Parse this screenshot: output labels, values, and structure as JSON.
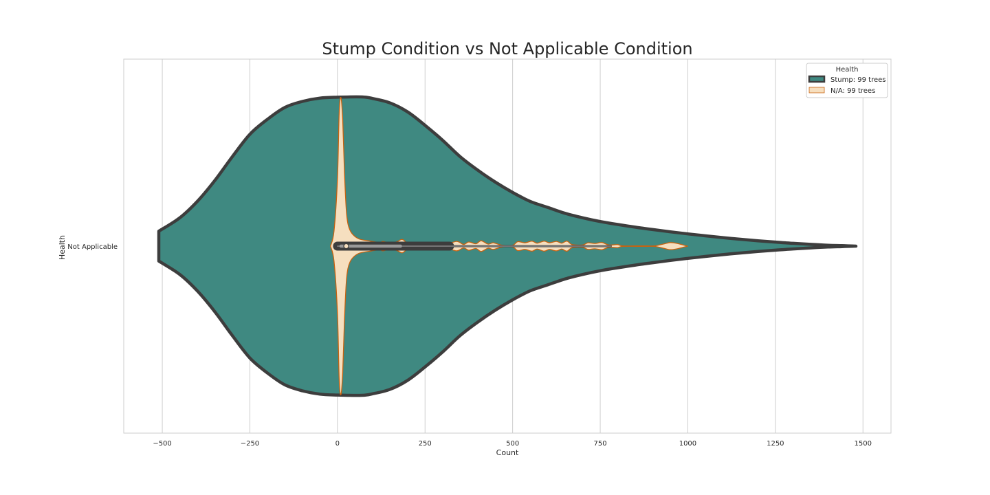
{
  "chart_data": {
    "type": "violin",
    "title": "Stump Condition vs Not Applicable Condition",
    "xlabel": "Count",
    "ylabel": "Health",
    "category": "Not Applicable",
    "xlim": [
      -610,
      1580
    ],
    "xticks": [
      -500,
      -250,
      0,
      250,
      500,
      750,
      1000,
      1250,
      1500
    ],
    "xtick_labels": [
      "−500",
      "−250",
      "0",
      "250",
      "500",
      "750",
      "1000",
      "1250",
      "1500"
    ],
    "grid": "vertical",
    "legend": {
      "title": "Health",
      "position": "top-right",
      "entries": [
        "Stump: 99 trees",
        "N/A: 99 trees"
      ]
    },
    "series": [
      {
        "name": "Stump: 99 trees",
        "fill": "#3f8981",
        "edge": "#3d3d3d",
        "range": [
          -510,
          1480
        ],
        "density_profile": [
          [
            -510,
            0.1
          ],
          [
            -450,
            0.19
          ],
          [
            -400,
            0.3
          ],
          [
            -350,
            0.44
          ],
          [
            -300,
            0.6
          ],
          [
            -250,
            0.75
          ],
          [
            -200,
            0.85
          ],
          [
            -150,
            0.93
          ],
          [
            -100,
            0.97
          ],
          [
            -50,
            0.992
          ],
          [
            0,
            0.998
          ],
          [
            70,
            1.0
          ],
          [
            100,
            0.99
          ],
          [
            150,
            0.96
          ],
          [
            200,
            0.9
          ],
          [
            250,
            0.81
          ],
          [
            300,
            0.71
          ],
          [
            350,
            0.6
          ],
          [
            400,
            0.51
          ],
          [
            450,
            0.43
          ],
          [
            500,
            0.36
          ],
          [
            550,
            0.3
          ],
          [
            600,
            0.26
          ],
          [
            650,
            0.22
          ],
          [
            700,
            0.19
          ],
          [
            750,
            0.165
          ],
          [
            800,
            0.145
          ],
          [
            850,
            0.127
          ],
          [
            900,
            0.111
          ],
          [
            950,
            0.096
          ],
          [
            1000,
            0.082
          ],
          [
            1050,
            0.069
          ],
          [
            1100,
            0.057
          ],
          [
            1150,
            0.046
          ],
          [
            1200,
            0.036
          ],
          [
            1250,
            0.027
          ],
          [
            1300,
            0.019
          ],
          [
            1350,
            0.012
          ],
          [
            1400,
            0.006
          ],
          [
            1440,
            0.003
          ],
          [
            1480,
            0.0
          ]
        ],
        "box": {
          "q1": 0,
          "median": 25,
          "q3": 320,
          "whisker_low": 0,
          "whisker_high": 780
        }
      },
      {
        "name": "N/A: 99 trees",
        "fill": "#f6dfbf",
        "edge": "#c8620f",
        "range": [
          -20,
          1000
        ],
        "density_profile": [
          [
            -20,
            0.0
          ],
          [
            -10,
            0.1
          ],
          [
            0,
            0.45
          ],
          [
            5,
            0.9
          ],
          [
            10,
            1.0
          ],
          [
            15,
            0.85
          ],
          [
            20,
            0.5
          ],
          [
            25,
            0.25
          ],
          [
            30,
            0.15
          ],
          [
            40,
            0.09
          ],
          [
            60,
            0.05
          ],
          [
            90,
            0.035
          ],
          [
            120,
            0.025
          ],
          [
            130,
            0.032
          ],
          [
            150,
            0.02
          ],
          [
            170,
            0.03
          ],
          [
            185,
            0.045
          ],
          [
            200,
            0.02
          ],
          [
            220,
            0.01
          ],
          [
            260,
            0.006
          ],
          [
            275,
            0.022
          ],
          [
            290,
            0.006
          ],
          [
            310,
            0.01
          ],
          [
            340,
            0.032
          ],
          [
            360,
            0.012
          ],
          [
            375,
            0.028
          ],
          [
            395,
            0.016
          ],
          [
            410,
            0.036
          ],
          [
            430,
            0.014
          ],
          [
            445,
            0.022
          ],
          [
            470,
            0.006
          ],
          [
            500,
            0.006
          ],
          [
            515,
            0.03
          ],
          [
            535,
            0.022
          ],
          [
            555,
            0.034
          ],
          [
            570,
            0.02
          ],
          [
            590,
            0.034
          ],
          [
            605,
            0.022
          ],
          [
            625,
            0.032
          ],
          [
            640,
            0.02
          ],
          [
            655,
            0.034
          ],
          [
            670,
            0.01
          ],
          [
            700,
            0.008
          ],
          [
            715,
            0.022
          ],
          [
            735,
            0.018
          ],
          [
            755,
            0.024
          ],
          [
            775,
            0.008
          ],
          [
            800,
            0.01
          ],
          [
            815,
            0.002
          ],
          [
            870,
            0.002
          ],
          [
            905,
            0.002
          ],
          [
            930,
            0.014
          ],
          [
            950,
            0.024
          ],
          [
            970,
            0.018
          ],
          [
            990,
            0.006
          ],
          [
            1000,
            0.0
          ]
        ],
        "box": {
          "q1": 10,
          "median": 25,
          "q3": 180,
          "whisker_low": 0,
          "whisker_high": 780
        }
      }
    ]
  }
}
